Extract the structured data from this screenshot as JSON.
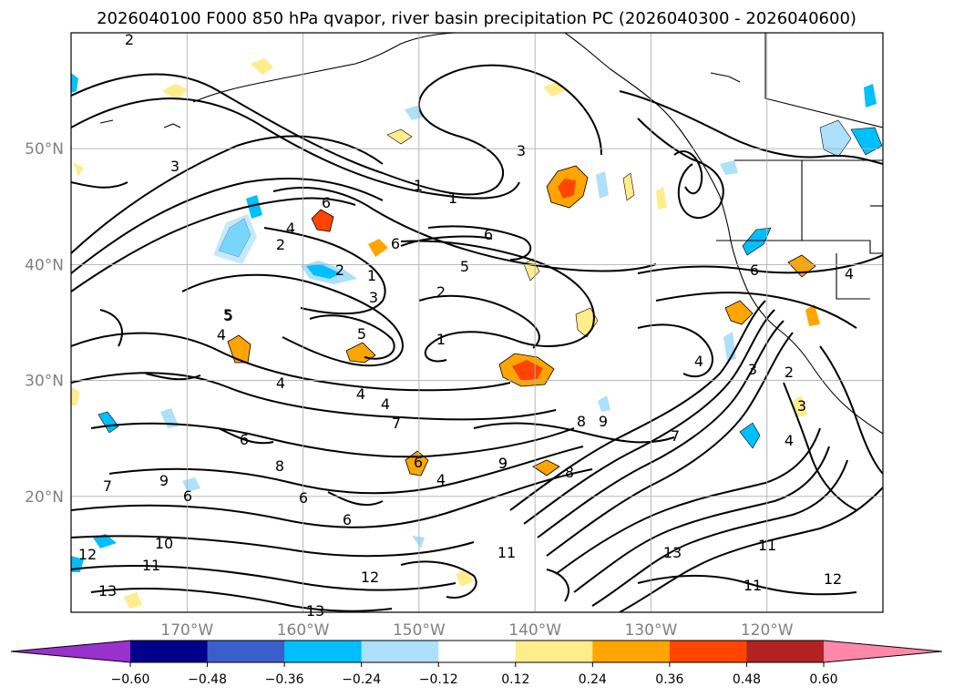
{
  "title": "2026040100 F000 850 hPa qvapor, river basin precipitation PC (2026040300 - 2026040600)",
  "map": {
    "lon_range": [
      -180,
      -110
    ],
    "lat_range": [
      10,
      60
    ],
    "lat_ticks": [
      "50°N",
      "40°N",
      "30°N",
      "20°N"
    ],
    "lon_ticks": [
      "170°W",
      "160°W",
      "150°W",
      "140°W",
      "130°W",
      "120°W"
    ],
    "grid": true
  },
  "colorbar": {
    "ticks": [
      "−0.60",
      "−0.48",
      "−0.36",
      "−0.24",
      "−0.12",
      "0.12",
      "0.24",
      "0.36",
      "0.48",
      "0.60"
    ],
    "colors": [
      "#9932CC",
      "#00008B",
      "#3A5FCD",
      "#00BFFF",
      "#ADE0FA",
      "#FFFFFF",
      "#FFEC8B",
      "#FFA500",
      "#FF4500",
      "#B22222",
      "#FF88AA"
    ],
    "extend": "both"
  },
  "contour_labels": [
    "2",
    "3",
    "1",
    "1",
    "6",
    "6",
    "4",
    "2",
    "5",
    "6",
    "3",
    "2",
    "1",
    "3",
    "2",
    "5",
    "4",
    "5",
    "1",
    "4",
    "4",
    "4",
    "7",
    "9",
    "8",
    "9",
    "6",
    "8",
    "6",
    "6",
    "9",
    "7",
    "6",
    "4",
    "9",
    "10",
    "11",
    "12",
    "13",
    "11",
    "12",
    "13",
    "13",
    "11",
    "12",
    "11",
    "6",
    "7",
    "4",
    "8",
    "6",
    "3",
    "2",
    "3",
    "4",
    "4",
    "5"
  ],
  "coastlines": true
}
